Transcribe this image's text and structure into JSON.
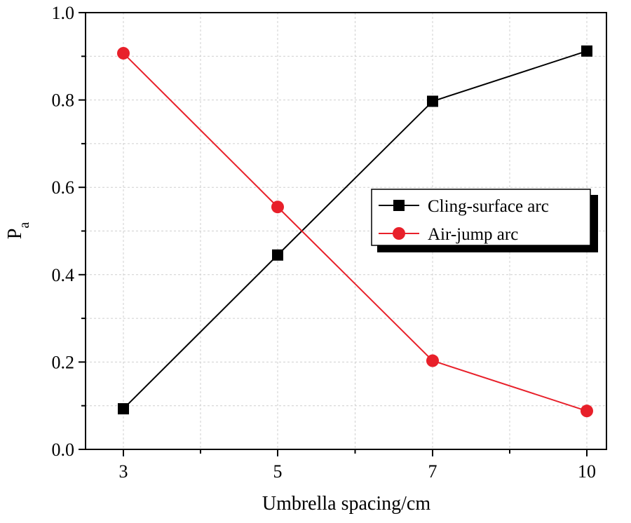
{
  "chart_data": {
    "type": "line",
    "categories": [
      "3",
      "5",
      "7",
      "10"
    ],
    "series": [
      {
        "name": "Cling-surface arc",
        "values": [
          0.093,
          0.445,
          0.797,
          0.912
        ],
        "color": "#000000",
        "marker": "square"
      },
      {
        "name": "Air-jump arc",
        "values": [
          0.907,
          0.555,
          0.203,
          0.088
        ],
        "color": "#e8202a",
        "marker": "circle"
      }
    ],
    "title": "",
    "xlabel": "Umbrella spacing/cm",
    "ylabel_main": "P",
    "ylabel_sub": "a",
    "ylim": [
      0,
      1.0
    ],
    "y_ticks": [
      "0.0",
      "0.2",
      "0.4",
      "0.6",
      "0.8",
      "1.0"
    ],
    "grid": true,
    "legend_position": "middle-right"
  }
}
